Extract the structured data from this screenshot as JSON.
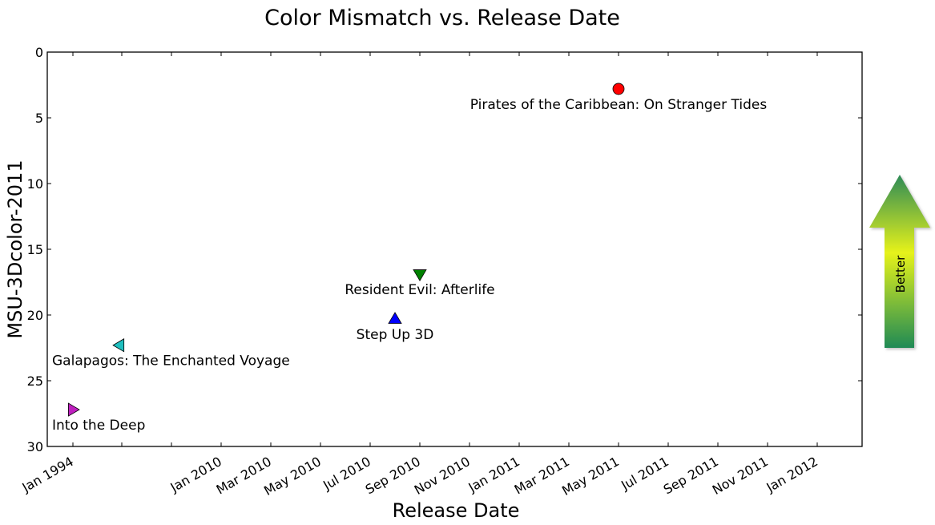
{
  "chart_data": {
    "type": "scatter",
    "title": "Color Mismatch vs. Release Date",
    "xlabel": "Release Date",
    "ylabel": "MSU-3Dcolor-2011",
    "ylim": [
      0,
      30
    ],
    "y_inverted": true,
    "y_ticks": [
      "0",
      "5",
      "10",
      "15",
      "20",
      "25",
      "30"
    ],
    "x_ticks": [
      "Jan 1994",
      "Jan 2010",
      "Mar 2010",
      "May 2010",
      "Jul 2010",
      "Sep 2010",
      "Nov 2010",
      "Jan 2011",
      "Mar 2011",
      "May 2011",
      "Jul 2011",
      "Sep 2011",
      "Nov 2011",
      "Jan 2012"
    ],
    "x_scale": "broken date axis (Jan 1994 followed by Jan 2010 onward)",
    "grid": false,
    "series": [
      {
        "label": "Into the Deep",
        "release": "Jan 1994",
        "value": 27.2,
        "marker": "triangle-right",
        "color": "#bf1fbf"
      },
      {
        "label": "Galapagos: The Enchanted Voyage",
        "release": "Oct 1999",
        "value": 22.3,
        "marker": "triangle-left",
        "color": "#1fbfbf"
      },
      {
        "label": "Step Up 3D",
        "release": "Aug 2010",
        "value": 20.3,
        "marker": "triangle-up",
        "color": "#0000ff"
      },
      {
        "label": "Resident Evil: Afterlife",
        "release": "Sep 2010",
        "value": 16.9,
        "marker": "triangle-down",
        "color": "#008000"
      },
      {
        "label": "Pirates of the Caribbean: On Stranger Tides",
        "release": "May 2011",
        "value": 2.8,
        "marker": "circle",
        "color": "#ff0000"
      }
    ]
  },
  "side_indicator": {
    "label": "Better",
    "icon": "up-arrow-icon",
    "colors": [
      "#e8f01c",
      "#2e8b57"
    ]
  }
}
